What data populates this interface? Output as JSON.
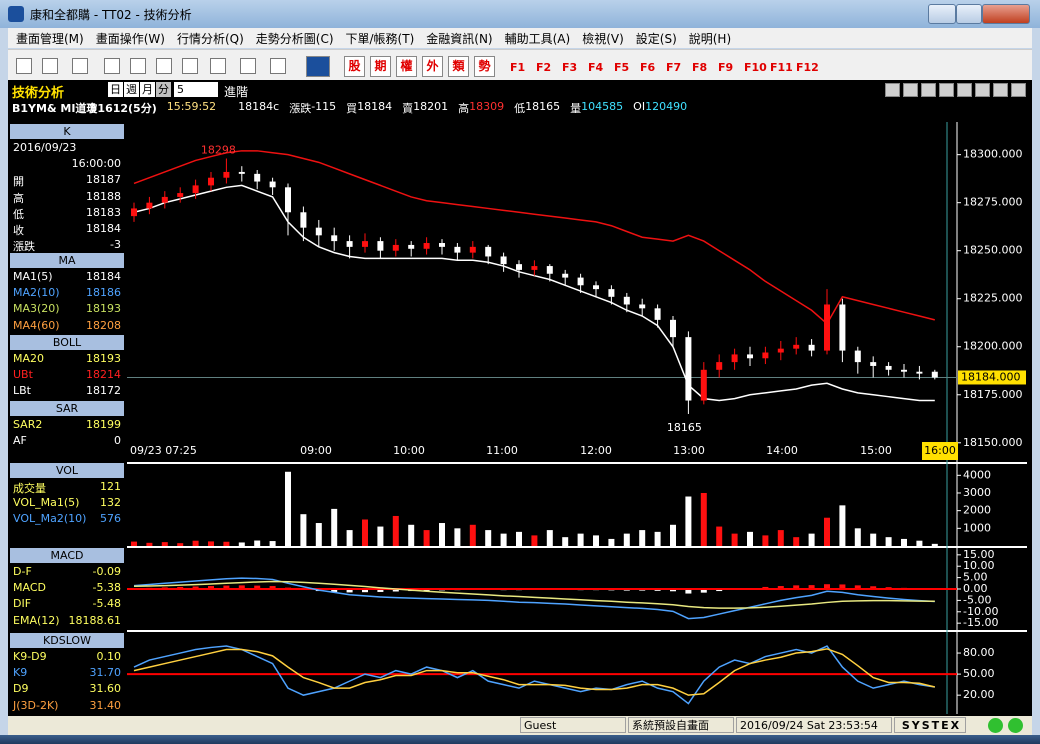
{
  "window": {
    "title": "康和全都購 - TT02 - 技術分析"
  },
  "menu": [
    "畫面管理(M)",
    "畫面操作(W)",
    "行情分析(Q)",
    "走勢分析圖(C)",
    "下單/帳務(T)",
    "金融資訊(N)",
    "輔助工具(A)",
    "檢視(V)",
    "設定(S)",
    "說明(H)"
  ],
  "toolbar": {
    "orders": [
      "股",
      "期",
      "權",
      "外",
      "類",
      "勢"
    ],
    "fkeys": [
      "F1",
      "F2",
      "F3",
      "F4",
      "F5",
      "F6",
      "F7",
      "F8",
      "F9",
      "F10",
      "F11",
      "F12"
    ]
  },
  "header": {
    "title": "技術分析",
    "periods": [
      "日",
      "週",
      "月",
      "分"
    ],
    "interval": "5",
    "advanced": "進階",
    "symbol": "B1YM& MI道瓊1612(5分)",
    "time": "15:59:52",
    "last": "18184c",
    "quote": [
      {
        "label": "漲跌",
        "value": "-115"
      },
      {
        "label": "買",
        "value": "18184"
      },
      {
        "label": "賣",
        "value": "18201"
      },
      {
        "label": "高",
        "value": "18309",
        "color": "#ff3030"
      },
      {
        "label": "低",
        "value": "18165"
      },
      {
        "label": "量",
        "value": "104585",
        "color": "#40e0ff"
      },
      {
        "label": "OI",
        "value": "120490",
        "color": "#40e0ff"
      }
    ]
  },
  "sections": [
    {
      "title": "K",
      "rows": [
        {
          "label": "2016/09/23"
        },
        {
          "value": "16:00:00"
        },
        {
          "label": "開",
          "value": "18187"
        },
        {
          "label": "高",
          "value": "18188"
        },
        {
          "label": "低",
          "value": "18183"
        },
        {
          "label": "收",
          "value": "18184"
        },
        {
          "label": "漲跌",
          "value": "-3"
        }
      ]
    },
    {
      "title": "MA",
      "rows": [
        {
          "label": "MA1(5)",
          "value": "18184",
          "color": "#ffffff"
        },
        {
          "label": "MA2(10)",
          "value": "18186",
          "color": "#4fa3ff"
        },
        {
          "label": "MA3(20)",
          "value": "18193",
          "color": "#c8e060"
        },
        {
          "label": "MA4(60)",
          "value": "18208",
          "color": "#ffa040"
        }
      ]
    },
    {
      "title": "BOLL",
      "rows": [
        {
          "label": "MA20",
          "value": "18193",
          "color": "#ffff60"
        },
        {
          "label": "UBt",
          "value": "18214",
          "color": "#ff2020"
        },
        {
          "label": "LBt",
          "value": "18172",
          "color": "#ffffff"
        }
      ]
    },
    {
      "title": "SAR",
      "rows": [
        {
          "label": "SAR2",
          "value": "18199",
          "color": "#ffff60"
        },
        {
          "label": "AF",
          "value": "0"
        }
      ]
    },
    {
      "title": "VOL",
      "rows": [
        {
          "label": "成交量",
          "value": "121",
          "color": "#ffff60"
        },
        {
          "label": "VOL_Ma1(5)",
          "value": "132",
          "color": "#ffff60"
        },
        {
          "label": "VOL_Ma2(10)",
          "value": "576",
          "color": "#4fa3ff"
        }
      ]
    },
    {
      "title": "MACD",
      "rows": [
        {
          "label": "D-F",
          "value": "-0.09",
          "color": "#ffff60"
        },
        {
          "label": "MACD",
          "value": "-5.38",
          "color": "#ffff60"
        },
        {
          "label": "DIF",
          "value": "-5.48",
          "color": "#ffff60"
        },
        {
          "label": "EMA(12)",
          "value": "18188.61",
          "color": "#ffff60"
        }
      ]
    },
    {
      "title": "KDSLOW",
      "rows": [
        {
          "label": "K9-D9",
          "value": "0.10",
          "color": "#ffff60"
        },
        {
          "label": "K9",
          "value": "31.70",
          "color": "#4fa3ff"
        },
        {
          "label": "D9",
          "value": "31.60",
          "color": "#ffff60"
        },
        {
          "label": "J(3D-2K)",
          "value": "31.40",
          "color": "#ffa040"
        }
      ]
    }
  ],
  "price": {
    "type": "candlestick",
    "up_color": "#ff1010",
    "down_color": "#ffffff",
    "ylim": [
      18140,
      18317
    ],
    "yticks": [
      {
        "value": 18300,
        "label": "18300.000"
      },
      {
        "value": 18275,
        "label": "18275.000"
      },
      {
        "value": 18250,
        "label": "18250.000"
      },
      {
        "value": 18225,
        "label": "18225.000"
      },
      {
        "value": 18200,
        "label": "18200.000"
      },
      {
        "value": 18175,
        "label": "18175.000"
      },
      {
        "value": 18150,
        "label": "18150.000"
      }
    ],
    "xlabels": [
      "09/23 07:25",
      "09:00",
      "10:00",
      "11:00",
      "12:00",
      "13:00",
      "14:00",
      "15:00",
      "16:00"
    ],
    "last_price": {
      "value": 18184,
      "label": "18184.000"
    },
    "high_label": 18298,
    "low_label": 18165,
    "candles": [
      [
        18268,
        18275,
        18265,
        18272
      ],
      [
        18272,
        18278,
        18269,
        18275
      ],
      [
        18275,
        18281,
        18272,
        18278
      ],
      [
        18278,
        18283,
        18275,
        18280
      ],
      [
        18280,
        18287,
        18277,
        18284
      ],
      [
        18284,
        18291,
        18281,
        18288
      ],
      [
        18288,
        18298,
        18285,
        18291
      ],
      [
        18291,
        18294,
        18286,
        18290
      ],
      [
        18290,
        18292,
        18282,
        18286
      ],
      [
        18286,
        18288,
        18279,
        18283
      ],
      [
        18283,
        18285,
        18258,
        18270
      ],
      [
        18270,
        18273,
        18255,
        18262
      ],
      [
        18262,
        18266,
        18252,
        18258
      ],
      [
        18258,
        18262,
        18250,
        18255
      ],
      [
        18255,
        18258,
        18246,
        18252
      ],
      [
        18252,
        18259,
        18249,
        18255
      ],
      [
        18255,
        18257,
        18246,
        18250
      ],
      [
        18250,
        18256,
        18247,
        18253
      ],
      [
        18253,
        18255,
        18247,
        18251
      ],
      [
        18251,
        18257,
        18248,
        18254
      ],
      [
        18254,
        18256,
        18248,
        18252
      ],
      [
        18252,
        18254,
        18245,
        18249
      ],
      [
        18249,
        18255,
        18246,
        18252
      ],
      [
        18252,
        18253,
        18243,
        18247
      ],
      [
        18247,
        18249,
        18239,
        18243
      ],
      [
        18243,
        18245,
        18236,
        18240
      ],
      [
        18240,
        18245,
        18237,
        18242
      ],
      [
        18242,
        18243,
        18234,
        18238
      ],
      [
        18238,
        18240,
        18232,
        18236
      ],
      [
        18236,
        18238,
        18228,
        18232
      ],
      [
        18232,
        18234,
        18226,
        18230
      ],
      [
        18230,
        18232,
        18222,
        18226
      ],
      [
        18226,
        18228,
        18218,
        18222
      ],
      [
        18222,
        18225,
        18216,
        18220
      ],
      [
        18220,
        18222,
        18210,
        18214
      ],
      [
        18214,
        18216,
        18200,
        18205
      ],
      [
        18205,
        18208,
        18165,
        18172
      ],
      [
        18172,
        18192,
        18170,
        18188
      ],
      [
        18188,
        18196,
        18184,
        18192
      ],
      [
        18192,
        18199,
        18188,
        18196
      ],
      [
        18196,
        18200,
        18190,
        18194
      ],
      [
        18194,
        18200,
        18191,
        18197
      ],
      [
        18197,
        18203,
        18193,
        18199
      ],
      [
        18199,
        18205,
        18196,
        18201
      ],
      [
        18201,
        18204,
        18195,
        18198
      ],
      [
        18198,
        18230,
        18196,
        18222
      ],
      [
        18222,
        18225,
        18192,
        18198
      ],
      [
        18198,
        18200,
        18186,
        18192
      ],
      [
        18192,
        18195,
        18184,
        18190
      ],
      [
        18190,
        18192,
        18185,
        18188
      ],
      [
        18188,
        18191,
        18184,
        18187
      ],
      [
        18187,
        18190,
        18183,
        18186
      ],
      [
        18187,
        18188,
        18183,
        18184
      ]
    ],
    "boll_upper": {
      "color": "#ee1111",
      "values": [
        18285,
        18288,
        18291,
        18294,
        18297,
        18299,
        18301,
        18302,
        18302,
        18301,
        18300,
        18298,
        18296,
        18293,
        18290,
        18287,
        18284,
        18281,
        18278,
        18276,
        18275,
        18274,
        18273,
        18272,
        18271,
        18270,
        18269,
        18268,
        18267,
        18266,
        18265,
        18263,
        18260,
        18257,
        18256,
        18255,
        18258,
        18255,
        18250,
        18245,
        18240,
        18234,
        18229,
        18224,
        18219,
        18212,
        18226,
        18224,
        18222,
        18220,
        18218,
        18216,
        18214
      ]
    },
    "boll_lower": {
      "color": "#ffffff",
      "values": [
        18270,
        18272,
        18275,
        18277,
        18279,
        18281,
        18283,
        18284,
        18281,
        18278,
        18265,
        18257,
        18252,
        18249,
        18247,
        18246,
        18246,
        18246,
        18246,
        18246,
        18246,
        18245,
        18245,
        18244,
        18242,
        18239,
        18237,
        18235,
        18232,
        18229,
        18226,
        18223,
        18219,
        18216,
        18211,
        18200,
        18180,
        18173,
        18172,
        18173,
        18175,
        18176,
        18177,
        18178,
        18180,
        18181,
        18178,
        18176,
        18175,
        18174,
        18173,
        18172,
        18172
      ]
    }
  },
  "volume": {
    "type": "bar",
    "flat_color": "#20d020",
    "ylim": [
      0,
      4640
    ],
    "yticks": [
      4000,
      3000,
      2000,
      1000
    ],
    "values": [
      250,
      180,
      220,
      160,
      300,
      260,
      240,
      200,
      310,
      280,
      4200,
      1800,
      1300,
      2100,
      900,
      1500,
      1100,
      1700,
      1200,
      900,
      1300,
      1000,
      1200,
      900,
      700,
      800,
      600,
      900,
      500,
      700,
      600,
      400,
      700,
      900,
      800,
      1200,
      2800,
      3000,
      1100,
      700,
      800,
      600,
      900,
      500,
      700,
      1600,
      2300,
      1000,
      700,
      500,
      400,
      300,
      121
    ]
  },
  "macd": {
    "type": "bar",
    "pos_color": "#ff1010",
    "neg_color": "#ffffff",
    "zero_color": "#ff0000",
    "ylim": [
      -18,
      18
    ],
    "yticks": [
      {
        "value": 15,
        "label": "15.00"
      },
      {
        "value": 10,
        "label": "10.00"
      },
      {
        "value": 5,
        "label": "5.00"
      },
      {
        "value": 0,
        "label": "0.00"
      },
      {
        "value": -5,
        "label": "-5.00"
      },
      {
        "value": -10,
        "label": "-10.00"
      },
      {
        "value": -15,
        "label": "-15.00"
      }
    ],
    "osc": [
      0.3,
      0.5,
      0.7,
      0.9,
      1.1,
      1.3,
      1.5,
      1.6,
      1.5,
      1.3,
      0.6,
      -0.3,
      -0.9,
      -1.3,
      -1.5,
      -1.4,
      -1.3,
      -1.1,
      -0.9,
      -0.8,
      -0.6,
      -0.5,
      -0.4,
      -0.4,
      -0.5,
      -0.5,
      -0.4,
      -0.4,
      -0.4,
      -0.5,
      -0.5,
      -0.6,
      -0.7,
      -0.7,
      -0.8,
      -1.0,
      -2.0,
      -1.6,
      -0.9,
      -0.2,
      0.4,
      0.9,
      1.3,
      1.6,
      1.7,
      2.1,
      2.0,
      1.6,
      1.2,
      0.8,
      0.5,
      0.2,
      -0.09
    ],
    "dif": {
      "color": "#4fa3ff",
      "values": [
        1.5,
        2,
        2.5,
        3,
        3.5,
        4,
        4.5,
        4.8,
        4.6,
        4.2,
        2.5,
        1,
        -0.5,
        -1.5,
        -2.5,
        -3,
        -3.5,
        -3.8,
        -4,
        -4.2,
        -4.4,
        -4.6,
        -4.8,
        -5,
        -5.4,
        -5.8,
        -6,
        -6.3,
        -6.6,
        -7,
        -7.4,
        -7.8,
        -8.2,
        -8.5,
        -9,
        -9.8,
        -13,
        -12.5,
        -11,
        -9.5,
        -8,
        -6.5,
        -5,
        -3.8,
        -2.8,
        -1,
        -1.5,
        -2.5,
        -3.3,
        -4,
        -4.6,
        -5.1,
        -5.48
      ]
    },
    "signal": {
      "color": "#e8e880",
      "values": [
        1.2,
        1.3,
        1.5,
        1.7,
        1.9,
        2.2,
        2.5,
        2.8,
        3.1,
        3.3,
        3.2,
        2.9,
        2.5,
        2.1,
        1.6,
        1.1,
        0.5,
        0,
        -0.5,
        -1,
        -1.4,
        -1.8,
        -2.2,
        -2.6,
        -3,
        -3.3,
        -3.7,
        -4,
        -4.4,
        -4.7,
        -5.1,
        -5.4,
        -5.8,
        -6.1,
        -6.5,
        -6.9,
        -7.7,
        -8.2,
        -8.4,
        -8.4,
        -8.3,
        -8,
        -7.6,
        -7.1,
        -6.6,
        -5.9,
        -5.4,
        -5.2,
        -5.1,
        -5.1,
        -5.2,
        -5.3,
        -5.38
      ]
    }
  },
  "kd": {
    "type": "line",
    "midline": 50,
    "mid_color": "#ff0000",
    "ylim": [
      -4,
      110
    ],
    "yticks": [
      {
        "value": 80,
        "label": "80.00"
      },
      {
        "value": 50,
        "label": "50.00"
      },
      {
        "value": 20,
        "label": "20.00"
      }
    ],
    "k": {
      "color": "#4fa3ff",
      "values": [
        60,
        70,
        75,
        80,
        85,
        88,
        90,
        85,
        75,
        65,
        30,
        20,
        25,
        30,
        40,
        50,
        45,
        55,
        50,
        60,
        55,
        45,
        55,
        40,
        35,
        30,
        40,
        35,
        30,
        25,
        30,
        28,
        35,
        40,
        30,
        25,
        8,
        40,
        60,
        70,
        65,
        75,
        80,
        85,
        80,
        90,
        60,
        40,
        30,
        35,
        40,
        35,
        31.7
      ]
    },
    "d": {
      "color": "#ffd040",
      "values": [
        55,
        60,
        65,
        70,
        75,
        80,
        85,
        85,
        82,
        76,
        60,
        45,
        38,
        30,
        30,
        38,
        42,
        48,
        48,
        55,
        55,
        52,
        52,
        47,
        42,
        35,
        35,
        35,
        34,
        30,
        28,
        28,
        30,
        35,
        35,
        30,
        20,
        22,
        38,
        55,
        65,
        70,
        74,
        80,
        82,
        86,
        78,
        62,
        45,
        38,
        38,
        37,
        31.6
      ]
    }
  },
  "status": {
    "user": "Guest",
    "screen": "系統預設自畫面",
    "datetime": "2016/09/24 Sat 23:53:54",
    "brand": "SYSTEX"
  }
}
